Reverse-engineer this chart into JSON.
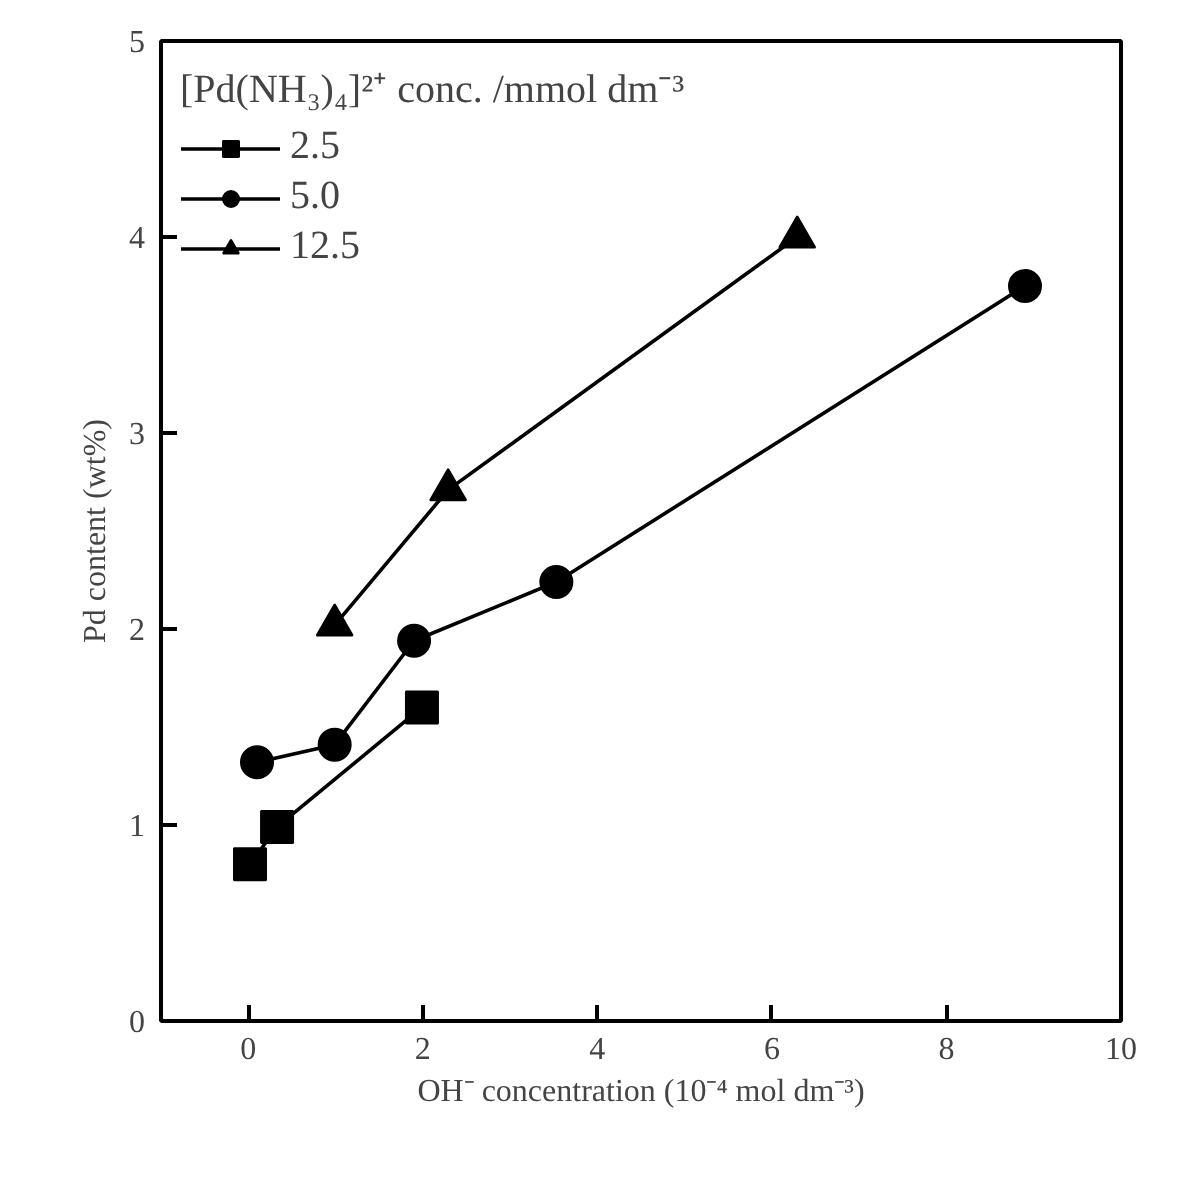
{
  "chart_data": {
    "type": "line",
    "xlabel": "OH⁻ concentration (10⁻⁴ mol dm⁻³)",
    "ylabel": "Pd content (wt%)",
    "legend_title": "[Pd(NH₃)₄]²⁺ conc. /mmol dm⁻³",
    "xlim": [
      -1,
      10
    ],
    "xticks": [
      0,
      2,
      4,
      6,
      8,
      10
    ],
    "ylim": [
      0,
      5
    ],
    "yticks": [
      0,
      1,
      2,
      3,
      4,
      5
    ],
    "grid": false,
    "legend": "top left",
    "line_style": "solid",
    "series": [
      {
        "name": "2.5",
        "color": "#000000",
        "marker": "square",
        "x": [
          0.02,
          0.33,
          1.99
        ],
        "values": [
          0.8,
          0.99,
          1.6
        ]
      },
      {
        "name": "5.0",
        "color": "#000000",
        "marker": "circle",
        "x": [
          0.1,
          0.99,
          1.9,
          3.53,
          8.9
        ],
        "values": [
          1.32,
          1.41,
          1.94,
          2.24,
          3.75
        ]
      },
      {
        "name": "12.5",
        "color": "#000000",
        "marker": "triangle",
        "x": [
          0.99,
          2.29,
          6.29
        ],
        "values": [
          2.02,
          2.71,
          4.0
        ]
      }
    ]
  }
}
